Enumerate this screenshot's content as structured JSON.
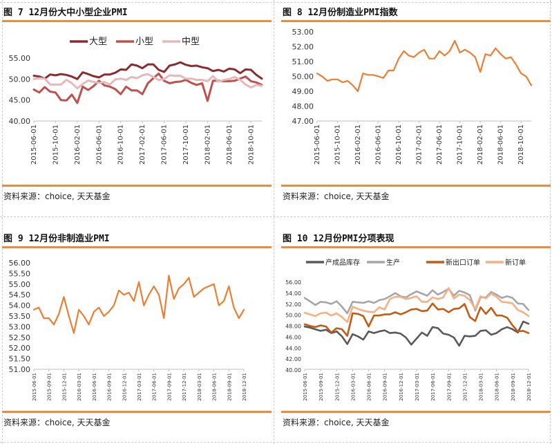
{
  "panels": [
    {
      "title": "图 7  12月份大中小型企业PMI",
      "source": "资料来源：choice, 天天基金",
      "chart_data": {
        "type": "line",
        "categories": [
          "2015-06-01",
          "2015-07-01",
          "2015-08-01",
          "2015-09-01",
          "2015-10-01",
          "2015-11-01",
          "2015-12-01",
          "2016-01-01",
          "2016-02-01",
          "2016-03-01",
          "2016-04-01",
          "2016-05-01",
          "2016-06-01",
          "2016-07-01",
          "2016-08-01",
          "2016-09-01",
          "2016-10-01",
          "2016-11-01",
          "2016-12-01",
          "2017-01-01",
          "2017-02-01",
          "2017-03-01",
          "2017-04-01",
          "2017-05-01",
          "2017-06-01",
          "2017-07-01",
          "2017-08-01",
          "2017-09-01",
          "2017-10-01",
          "2017-11-01",
          "2017-12-01",
          "2018-01-01",
          "2018-02-01",
          "2018-03-01",
          "2018-04-01",
          "2018-05-01",
          "2018-06-01",
          "2018-07-01",
          "2018-08-01",
          "2018-09-01",
          "2018-10-01",
          "2018-11-01",
          "2018-12-01"
        ],
        "tick_labels": [
          "2015-06-01",
          "2015-10-01",
          "2016-02-01",
          "2016-06-01",
          "2016-10-01",
          "2017-02-01",
          "2017-06-01",
          "2017-10-01",
          "2018-02-01",
          "2018-06-01",
          "2018-10-01"
        ],
        "tick_every": 4,
        "label_step": 1,
        "ylim": [
          40,
          55
        ],
        "yticks": [
          40.0,
          45.0,
          50.0,
          55.0
        ],
        "ytick_labels": [
          "40.00",
          "45.00",
          "50.00",
          "55.00"
        ],
        "legend_position": "top",
        "series": [
          {
            "name": "大型",
            "color": "#8b2a2f",
            "values": [
              50.8,
              50.6,
              50.1,
              51.1,
              50.9,
              51.2,
              51.0,
              50.6,
              50.0,
              51.6,
              51.2,
              50.7,
              50.4,
              51.1,
              51.1,
              51.5,
              52.3,
              52.2,
              53.5,
              53.2,
              52.6,
              53.5,
              53.5,
              52.2,
              51.7,
              53.2,
              53.5,
              54.0,
              53.4,
              53.1,
              53.2,
              52.8,
              52.6,
              51.9,
              52.2,
              51.8,
              52.5,
              52.3,
              51.4,
              52.3,
              52.2,
              51.0,
              50.1
            ]
          },
          {
            "name": "小型",
            "color": "#c0504d",
            "values": [
              47.5,
              46.8,
              48.1,
              47.0,
              46.8,
              45.0,
              44.9,
              46.3,
              44.3,
              48.2,
              47.4,
              48.3,
              49.6,
              48.5,
              48.2,
              47.6,
              46.4,
              48.2,
              47.3,
              47.3,
              46.4,
              49.0,
              50.2,
              51.3,
              49.6,
              49.0,
              49.3,
              49.4,
              49.8,
              49.1,
              48.6,
              49.0,
              44.8,
              49.6,
              49.6,
              49.5,
              49.5,
              49.6,
              50.1,
              50.6,
              49.5,
              49.2,
              48.6
            ]
          },
          {
            "name": "中型",
            "color": "#e7b8bb",
            "values": [
              50.0,
              50.2,
              50.1,
              48.7,
              48.7,
              48.7,
              49.8,
              49.0,
              47.8,
              48.8,
              49.7,
              49.3,
              49.1,
              49.3,
              48.7,
              49.9,
              50.1,
              49.8,
              50.5,
              50.2,
              50.9,
              51.2,
              50.5,
              49.8,
              50.0,
              50.9,
              50.8,
              50.8,
              50.1,
              50.1,
              49.8,
              49.8,
              49.5,
              50.7,
              49.4,
              49.8,
              50.0,
              50.5,
              49.8,
              48.7,
              48.0,
              48.6,
              48.4
            ]
          }
        ]
      }
    },
    {
      "title": "图 8  12月份制造业PMI指数",
      "source": "资料来源：choice, 天天基金",
      "chart_data": {
        "type": "line",
        "categories": [
          "2015-06-01",
          "2015-07-01",
          "2015-08-01",
          "2015-09-01",
          "2015-10-01",
          "2015-11-01",
          "2015-12-01",
          "2016-01-01",
          "2016-02-01",
          "2016-03-01",
          "2016-04-01",
          "2016-05-01",
          "2016-06-01",
          "2016-07-01",
          "2016-08-01",
          "2016-09-01",
          "2016-10-01",
          "2016-11-01",
          "2016-12-01",
          "2017-01-01",
          "2017-02-01",
          "2017-03-01",
          "2017-04-01",
          "2017-05-01",
          "2017-06-01",
          "2017-07-01",
          "2017-08-01",
          "2017-09-01",
          "2017-10-01",
          "2017-11-01",
          "2017-12-01",
          "2018-01-01",
          "2018-02-01",
          "2018-03-01",
          "2018-04-01",
          "2018-05-01",
          "2018-06-01",
          "2018-07-01",
          "2018-08-01",
          "2018-09-01",
          "2018-10-01",
          "2018-11-01",
          "2018-12-01"
        ],
        "tick_labels": [
          "2015-06-01",
          "2015-10-01",
          "2016-02-01",
          "2016-06-01",
          "2016-10-01",
          "2017-02-01",
          "2017-06-01",
          "2017-10-01",
          "2018-02-01",
          "2018-06-01",
          "2018-10-01"
        ],
        "tick_every": 4,
        "label_step": 1,
        "ylim": [
          47,
          53
        ],
        "yticks": [
          47.0,
          48.0,
          49.0,
          50.0,
          51.0,
          52.0,
          53.0
        ],
        "ytick_labels": [
          "47.00",
          "48.00",
          "49.00",
          "50.00",
          "51.00",
          "52.00",
          "53.00"
        ],
        "series": [
          {
            "name": "",
            "color": "#ed7d31",
            "values": [
              50.2,
              50.0,
              49.7,
              49.8,
              49.8,
              49.6,
              49.7,
              49.4,
              49.0,
              50.2,
              50.1,
              50.1,
              50.0,
              49.9,
              50.4,
              50.4,
              51.2,
              51.7,
              51.4,
              51.3,
              51.6,
              51.8,
              51.2,
              51.2,
              51.7,
              51.4,
              51.7,
              52.4,
              51.6,
              51.8,
              51.6,
              51.3,
              50.3,
              51.5,
              51.4,
              51.9,
              51.5,
              51.2,
              51.3,
              50.8,
              50.2,
              50.0,
              49.4
            ]
          }
        ]
      }
    },
    {
      "title": "图 9 12月份非制造业PMI",
      "source": "资料来源：choice, 天天基金",
      "chart_data": {
        "type": "line",
        "categories": [
          "2015-06-01",
          "2015-07-01",
          "2015-08-01",
          "2015-09-01",
          "2015-10-01",
          "2015-11-01",
          "2015-12-01",
          "2016-01-01",
          "2016-02-01",
          "2016-03-01",
          "2016-04-01",
          "2016-05-01",
          "2016-06-01",
          "2016-07-01",
          "2016-08-01",
          "2016-09-01",
          "2016-10-01",
          "2016-11-01",
          "2016-12-01",
          "2017-01-01",
          "2017-02-01",
          "2017-03-01",
          "2017-04-01",
          "2017-05-01",
          "2017-06-01",
          "2017-07-01",
          "2017-08-01",
          "2017-09-01",
          "2017-10-01",
          "2017-11-01",
          "2017-12-01",
          "2018-01-01",
          "2018-02-01",
          "2018-03-01",
          "2018-04-01",
          "2018-05-01",
          "2018-06-01",
          "2018-07-01",
          "2018-08-01",
          "2018-09-01",
          "2018-10-01",
          "2018-11-01",
          "2018-12-01"
        ],
        "tick_labels": [
          "2015-06-01",
          "2015-09-01",
          "2015-12-01",
          "2016-03-01",
          "2016-06-01",
          "2016-09-01",
          "2016-12-01",
          "2017-03-01",
          "2017-06-01",
          "2017-09-01",
          "2017-12-01",
          "2018-03-01",
          "2018-06-01",
          "2018-09-01",
          "2018-12-01"
        ],
        "tick_every": 3,
        "label_step": 1,
        "ylim": [
          51,
          56
        ],
        "yticks": [
          51.0,
          51.5,
          52.0,
          52.5,
          53.0,
          53.5,
          54.0,
          54.5,
          55.0,
          55.5,
          56.0
        ],
        "ytick_labels": [
          "51.00",
          "51.50",
          "52.00",
          "52.50",
          "53.00",
          "53.50",
          "54.00",
          "54.50",
          "55.00",
          "55.50",
          "56.00"
        ],
        "series": [
          {
            "name": "",
            "color": "#ed7d31",
            "values": [
              53.8,
              53.9,
              53.4,
              53.4,
              53.1,
              53.6,
              54.4,
              53.5,
              52.7,
              53.8,
              53.5,
              53.1,
              53.7,
              53.9,
              53.5,
              53.7,
              54.0,
              54.7,
              54.5,
              54.6,
              54.2,
              55.1,
              54.0,
              54.5,
              54.9,
              54.5,
              53.4,
              55.4,
              54.3,
              54.8,
              55.0,
              55.3,
              54.4,
              54.6,
              54.8,
              54.9,
              55.0,
              54.0,
              54.2,
              54.9,
              53.9,
              53.4,
              53.8
            ]
          }
        ]
      }
    },
    {
      "title": "图 10 12月份PMI分项表现",
      "source": "资料来源：choice, 天天基金",
      "chart_data": {
        "type": "line",
        "categories": [
          "2015-06-01",
          "2015-07-01",
          "2015-08-01",
          "2015-09-01",
          "2015-10-01",
          "2015-11-01",
          "2015-12-01",
          "2016-01-01",
          "2016-02-01",
          "2016-03-01",
          "2016-04-01",
          "2016-05-01",
          "2016-06-01",
          "2016-07-01",
          "2016-08-01",
          "2016-09-01",
          "2016-10-01",
          "2016-11-01",
          "2016-12-01",
          "2017-01-01",
          "2017-02-01",
          "2017-03-01",
          "2017-04-01",
          "2017-05-01",
          "2017-06-01",
          "2017-07-01",
          "2017-08-01",
          "2017-09-01",
          "2017-10-01",
          "2017-11-01",
          "2017-12-01",
          "2018-01-01",
          "2018-02-01",
          "2018-03-01",
          "2018-04-01",
          "2018-05-01",
          "2018-06-01",
          "2018-07-01",
          "2018-08-01",
          "2018-09-01",
          "2018-10-01",
          "2018-11-01",
          "2018-12-01"
        ],
        "tick_labels": [
          "2015-06-01",
          "2015-09-01",
          "2015-12-01",
          "2016-03-01",
          "2016-06-01",
          "2016-09-01",
          "2016-12-01",
          "2017-03-01",
          "2017-06-01",
          "2017-09-01",
          "2017-12-01",
          "2018-03-01",
          "2018-06-01",
          "2018-09-01",
          "2018-12-01"
        ],
        "tick_every": 3,
        "label_step": 1,
        "ylim": [
          40,
          56
        ],
        "yticks": [
          40.0,
          42.0,
          44.0,
          46.0,
          48.0,
          50.0,
          52.0,
          54.0,
          56.0
        ],
        "ytick_labels": [
          "40.00",
          "42.00",
          "44.00",
          "46.00",
          "48.00",
          "50.00",
          "52.00",
          "54.00",
          "56.00"
        ],
        "legend_position": "top",
        "series": [
          {
            "name": "产成品库存",
            "color": "#595959",
            "values": [
              47.8,
              47.6,
              47.3,
              47.0,
              47.2,
              46.6,
              46.9,
              46.0,
              44.6,
              46.4,
              46.0,
              45.4,
              46.9,
              46.6,
              46.9,
              47.1,
              46.6,
              46.7,
              46.5,
              45.8,
              44.5,
              45.6,
              46.7,
              46.1,
              47.7,
              47.5,
              46.5,
              46.3,
              45.8,
              44.3,
              46.1,
              46.0,
              46.1,
              47.0,
              47.1,
              46.3,
              46.6,
              47.3,
              47.7,
              47.3,
              46.7,
              48.7,
              48.3
            ]
          },
          {
            "name": "生产",
            "color": "#a6a6a6",
            "values": [
              53.0,
              52.4,
              51.7,
              52.3,
              52.2,
              51.9,
              52.4,
              51.4,
              50.2,
              52.3,
              52.2,
              52.1,
              52.4,
              52.1,
              52.6,
              52.8,
              53.3,
              53.9,
              53.3,
              53.1,
              53.7,
              54.2,
              53.8,
              53.4,
              54.4,
              53.6,
              54.1,
              54.7,
              53.4,
              54.3,
              54.0,
              53.5,
              50.7,
              53.1,
              53.1,
              54.1,
              53.6,
              53.0,
              53.3,
              53.0,
              52.0,
              51.9,
              50.8
            ]
          },
          {
            "name": "新出口订单",
            "color": "#c55a11",
            "values": [
              48.2,
              47.9,
              47.7,
              48.0,
              47.8,
              46.7,
              47.5,
              47.3,
              46.1,
              50.2,
              50.1,
              49.7,
              47.8,
              49.8,
              49.8,
              50.0,
              50.0,
              50.4,
              50.0,
              50.4,
              50.9,
              51.0,
              50.6,
              50.7,
              52.0,
              50.9,
              51.0,
              50.4,
              51.0,
              51.1,
              51.9,
              49.5,
              48.8,
              51.3,
              50.1,
              51.2,
              49.8,
              49.8,
              49.4,
              48.0,
              46.9,
              47.0,
              46.6
            ]
          },
          {
            "name": "新订单",
            "color": "#f4b183",
            "values": [
              50.3,
              50.0,
              49.7,
              50.2,
              50.3,
              49.8,
              50.2,
              49.5,
              48.6,
              51.4,
              51.0,
              50.7,
              50.5,
              50.4,
              51.3,
              50.9,
              52.8,
              53.2,
              53.2,
              52.8,
              53.0,
              53.3,
              52.3,
              52.3,
              53.1,
              52.8,
              53.1,
              54.8,
              52.9,
              53.6,
              53.4,
              52.6,
              51.0,
              53.3,
              52.9,
              53.8,
              53.2,
              52.3,
              52.2,
              52.0,
              50.8,
              50.4,
              49.7
            ]
          }
        ]
      }
    }
  ]
}
